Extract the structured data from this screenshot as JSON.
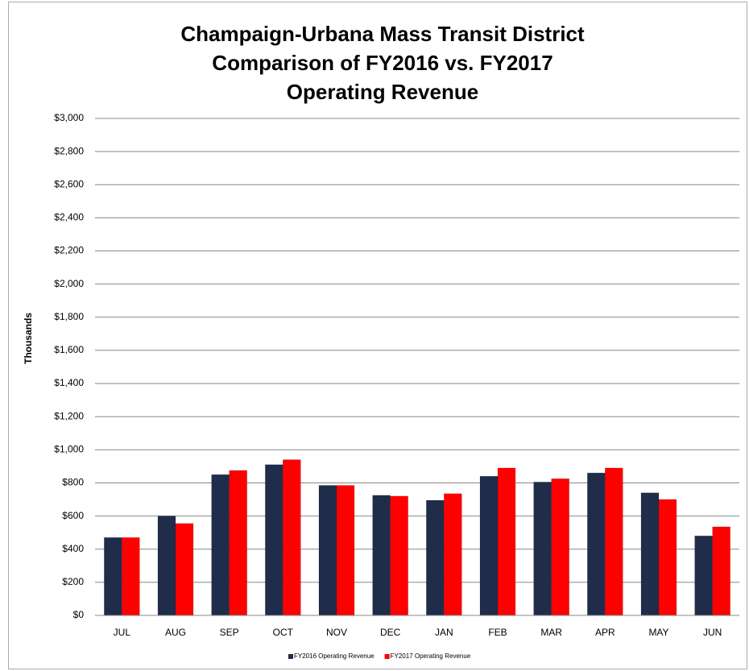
{
  "chart_data": {
    "type": "bar",
    "title": [
      "Champaign-Urbana Mass Transit District",
      "Comparison of FY2016 vs. FY2017",
      "Operating Revenue"
    ],
    "y_label": "Thousands",
    "categories": [
      "JUL",
      "AUG",
      "SEP",
      "OCT",
      "NOV",
      "DEC",
      "JAN",
      "FEB",
      "MAR",
      "APR",
      "MAY",
      "JUN"
    ],
    "series": [
      {
        "name": "FY2016 Operating Revenue",
        "color": "#1f2d4a",
        "values": [
          470,
          600,
          850,
          910,
          785,
          725,
          695,
          840,
          805,
          860,
          740,
          480
        ]
      },
      {
        "name": "FY2017 Operating Revenue",
        "color": "#ff0000",
        "values": [
          470,
          555,
          875,
          940,
          785,
          720,
          735,
          890,
          825,
          890,
          700,
          535
        ]
      }
    ],
    "ylim": [
      0,
      3000
    ],
    "yticks": [
      {
        "value": 0,
        "label": "$0"
      },
      {
        "value": 200,
        "label": "$200"
      },
      {
        "value": 400,
        "label": "$400"
      },
      {
        "value": 600,
        "label": "$600"
      },
      {
        "value": 800,
        "label": "$800"
      },
      {
        "value": 1000,
        "label": "$1,000"
      },
      {
        "value": 1200,
        "label": "$1,200"
      },
      {
        "value": 1400,
        "label": "$1,400"
      },
      {
        "value": 1600,
        "label": "$1,600"
      },
      {
        "value": 1800,
        "label": "$1,800"
      },
      {
        "value": 2000,
        "label": "$2,000"
      },
      {
        "value": 2200,
        "label": "$2,200"
      },
      {
        "value": 2400,
        "label": "$2,400"
      },
      {
        "value": 2600,
        "label": "$2,600"
      },
      {
        "value": 2800,
        "label": "$2,800"
      },
      {
        "value": 3000,
        "label": "$3,000"
      }
    ],
    "grid": true,
    "legend": "bottom"
  }
}
